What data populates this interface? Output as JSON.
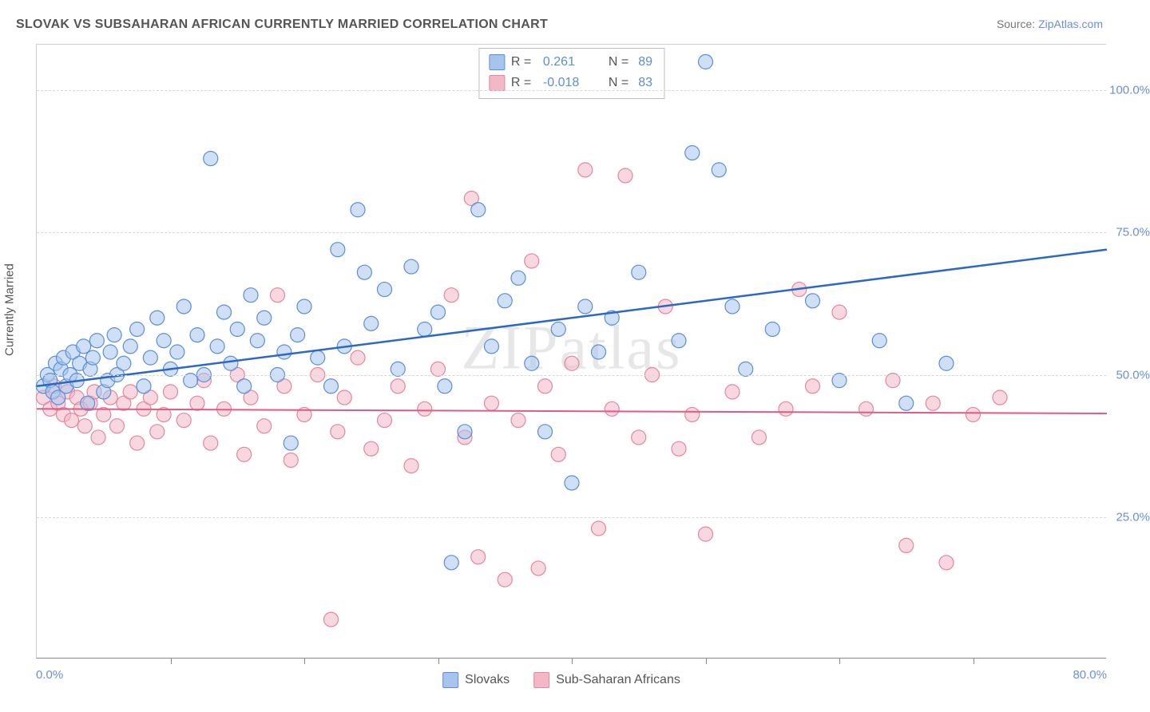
{
  "title": "SLOVAK VS SUBSAHARAN AFRICAN CURRENTLY MARRIED CORRELATION CHART",
  "source_label": "Source:",
  "source_name": "ZipAtlas.com",
  "yaxis_title": "Currently Married",
  "watermark": "ZIPatlas",
  "chart": {
    "type": "scatter",
    "xlim": [
      0,
      80
    ],
    "ylim": [
      0,
      108
    ],
    "xtick_step": 10,
    "yticks": [
      25,
      50,
      75,
      100
    ],
    "ytick_labels": [
      "25.0%",
      "50.0%",
      "75.0%",
      "100.0%"
    ],
    "xlabel_min": "0.0%",
    "xlabel_max": "80.0%",
    "background_color": "#ffffff",
    "grid_color": "#d8d8d8",
    "series": [
      {
        "name": "Slovaks",
        "color_fill": "#a7c5ec",
        "color_stroke": "#5a8fd8",
        "marker_radius": 9,
        "fill_opacity": 0.55,
        "R": "0.261",
        "N": "89",
        "trend": {
          "y_at_x0": 48,
          "y_at_xmax": 72,
          "stroke": "#2d68c4",
          "width": 2.5
        },
        "points": [
          [
            0.5,
            48
          ],
          [
            0.8,
            50
          ],
          [
            1,
            49
          ],
          [
            1.2,
            47
          ],
          [
            1.4,
            52
          ],
          [
            1.6,
            46
          ],
          [
            1.8,
            51
          ],
          [
            2,
            53
          ],
          [
            2.2,
            48
          ],
          [
            2.5,
            50
          ],
          [
            2.7,
            54
          ],
          [
            3,
            49
          ],
          [
            3.2,
            52
          ],
          [
            3.5,
            55
          ],
          [
            3.8,
            45
          ],
          [
            4,
            51
          ],
          [
            4.2,
            53
          ],
          [
            4.5,
            56
          ],
          [
            5,
            47
          ],
          [
            5.3,
            49
          ],
          [
            5.5,
            54
          ],
          [
            5.8,
            57
          ],
          [
            6,
            50
          ],
          [
            6.5,
            52
          ],
          [
            7,
            55
          ],
          [
            7.5,
            58
          ],
          [
            8,
            48
          ],
          [
            8.5,
            53
          ],
          [
            9,
            60
          ],
          [
            9.5,
            56
          ],
          [
            10,
            51
          ],
          [
            10.5,
            54
          ],
          [
            11,
            62
          ],
          [
            11.5,
            49
          ],
          [
            12,
            57
          ],
          [
            12.5,
            50
          ],
          [
            13,
            88
          ],
          [
            13.5,
            55
          ],
          [
            14,
            61
          ],
          [
            14.5,
            52
          ],
          [
            15,
            58
          ],
          [
            15.5,
            48
          ],
          [
            16,
            64
          ],
          [
            16.5,
            56
          ],
          [
            17,
            60
          ],
          [
            18,
            50
          ],
          [
            18.5,
            54
          ],
          [
            19,
            38
          ],
          [
            19.5,
            57
          ],
          [
            20,
            62
          ],
          [
            21,
            53
          ],
          [
            22,
            48
          ],
          [
            22.5,
            72
          ],
          [
            23,
            55
          ],
          [
            24,
            79
          ],
          [
            24.5,
            68
          ],
          [
            25,
            59
          ],
          [
            26,
            65
          ],
          [
            27,
            51
          ],
          [
            28,
            69
          ],
          [
            29,
            58
          ],
          [
            30,
            61
          ],
          [
            30.5,
            48
          ],
          [
            31,
            17
          ],
          [
            32,
            40
          ],
          [
            33,
            79
          ],
          [
            34,
            55
          ],
          [
            35,
            63
          ],
          [
            36,
            67
          ],
          [
            37,
            52
          ],
          [
            38,
            40
          ],
          [
            39,
            58
          ],
          [
            40,
            31
          ],
          [
            41,
            62
          ],
          [
            42,
            54
          ],
          [
            43,
            60
          ],
          [
            45,
            68
          ],
          [
            48,
            56
          ],
          [
            49,
            89
          ],
          [
            50,
            105
          ],
          [
            51,
            86
          ],
          [
            52,
            62
          ],
          [
            53,
            51
          ],
          [
            55,
            58
          ],
          [
            58,
            63
          ],
          [
            60,
            49
          ],
          [
            63,
            56
          ],
          [
            65,
            45
          ],
          [
            68,
            52
          ]
        ]
      },
      {
        "name": "Sub-Saharan Africans",
        "color_fill": "#f3b8c6",
        "color_stroke": "#e486a0",
        "marker_radius": 9,
        "fill_opacity": 0.55,
        "R": "-0.018",
        "N": "83",
        "trend": {
          "y_at_x0": 44,
          "y_at_xmax": 43.2,
          "stroke": "#e05a87",
          "width": 2
        },
        "points": [
          [
            0.5,
            46
          ],
          [
            1,
            44
          ],
          [
            1.3,
            48
          ],
          [
            1.6,
            45
          ],
          [
            2,
            43
          ],
          [
            2.3,
            47
          ],
          [
            2.6,
            42
          ],
          [
            3,
            46
          ],
          [
            3.3,
            44
          ],
          [
            3.6,
            41
          ],
          [
            4,
            45
          ],
          [
            4.3,
            47
          ],
          [
            4.6,
            39
          ],
          [
            5,
            43
          ],
          [
            5.5,
            46
          ],
          [
            6,
            41
          ],
          [
            6.5,
            45
          ],
          [
            7,
            47
          ],
          [
            7.5,
            38
          ],
          [
            8,
            44
          ],
          [
            8.5,
            46
          ],
          [
            9,
            40
          ],
          [
            9.5,
            43
          ],
          [
            10,
            47
          ],
          [
            11,
            42
          ],
          [
            12,
            45
          ],
          [
            12.5,
            49
          ],
          [
            13,
            38
          ],
          [
            14,
            44
          ],
          [
            15,
            50
          ],
          [
            15.5,
            36
          ],
          [
            16,
            46
          ],
          [
            17,
            41
          ],
          [
            18,
            64
          ],
          [
            18.5,
            48
          ],
          [
            19,
            35
          ],
          [
            20,
            43
          ],
          [
            21,
            50
          ],
          [
            22,
            7
          ],
          [
            22.5,
            40
          ],
          [
            23,
            46
          ],
          [
            24,
            53
          ],
          [
            25,
            37
          ],
          [
            26,
            42
          ],
          [
            27,
            48
          ],
          [
            28,
            34
          ],
          [
            29,
            44
          ],
          [
            30,
            51
          ],
          [
            31,
            64
          ],
          [
            32,
            39
          ],
          [
            32.5,
            81
          ],
          [
            33,
            18
          ],
          [
            34,
            45
          ],
          [
            35,
            14
          ],
          [
            36,
            42
          ],
          [
            37,
            70
          ],
          [
            37.5,
            16
          ],
          [
            38,
            48
          ],
          [
            39,
            36
          ],
          [
            40,
            52
          ],
          [
            41,
            86
          ],
          [
            42,
            23
          ],
          [
            43,
            44
          ],
          [
            44,
            85
          ],
          [
            45,
            39
          ],
          [
            46,
            50
          ],
          [
            47,
            62
          ],
          [
            48,
            37
          ],
          [
            49,
            43
          ],
          [
            50,
            22
          ],
          [
            52,
            47
          ],
          [
            54,
            39
          ],
          [
            56,
            44
          ],
          [
            57,
            65
          ],
          [
            58,
            48
          ],
          [
            60,
            61
          ],
          [
            62,
            44
          ],
          [
            64,
            49
          ],
          [
            65,
            20
          ],
          [
            67,
            45
          ],
          [
            68,
            17
          ],
          [
            70,
            43
          ],
          [
            72,
            46
          ]
        ]
      }
    ]
  },
  "legend": {
    "series1_label": "Slovaks",
    "series2_label": "Sub-Saharan Africans"
  },
  "stats_box": {
    "r_label": "R =",
    "n_label": "N ="
  }
}
